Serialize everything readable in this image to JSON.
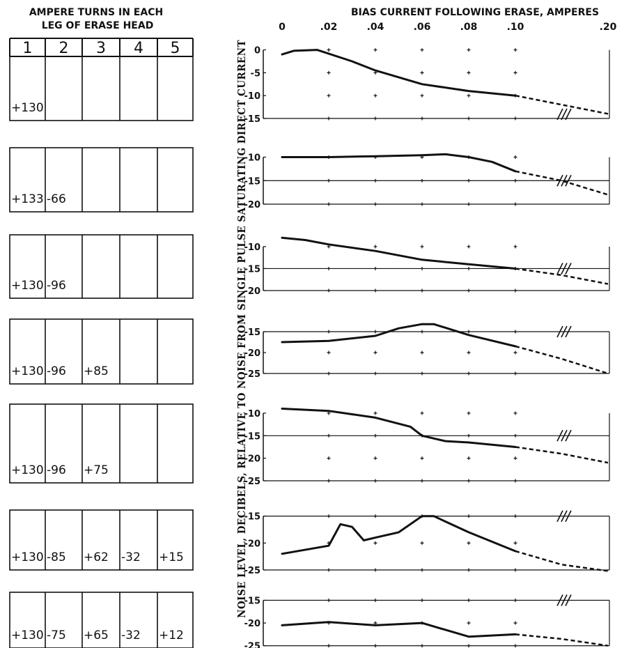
{
  "table": {
    "title_line1": "AMPERE TURNS IN EACH",
    "title_line2": "LEG OF ERASE HEAD",
    "columns": [
      "1",
      "2",
      "3",
      "4",
      "5"
    ],
    "rows": [
      [
        "+130",
        "",
        "",
        "",
        ""
      ],
      [
        "+133",
        "-66",
        "",
        "",
        ""
      ],
      [
        "+130",
        "-96",
        "",
        "",
        ""
      ],
      [
        "+130",
        "-96",
        "+85",
        "",
        ""
      ],
      [
        "+130",
        "-96",
        "+75",
        "",
        ""
      ],
      [
        "+130",
        "-85",
        "+62",
        "-32",
        "+15"
      ],
      [
        "+130",
        "-75",
        "+65",
        "-32",
        "+12"
      ]
    ]
  },
  "chart_data": {
    "type": "line",
    "xlabel": "BIAS CURRENT FOLLOWING ERASE, AMPERES",
    "ylabel": "NOISE LEVEL, DECIBELS, RELATIVE TO NOISE FROM SINGLE PULSE SATURATING DIRECT CURRENT",
    "x_ticks": [
      0,
      0.02,
      0.04,
      0.06,
      0.08,
      0.1,
      0.2
    ],
    "x_tick_labels": [
      "0",
      ".02",
      ".04",
      ".06",
      ".08",
      ".10",
      ".20"
    ],
    "x_axis_break": "between .10 and .20",
    "line_styles": {
      "measured": "solid",
      "extrapolated": "dashed"
    },
    "panels": [
      {
        "yticks": [
          0,
          -5,
          -10,
          -15
        ],
        "ylim": [
          -15,
          1
        ],
        "solid": [
          [
            0,
            -1
          ],
          [
            0.005,
            -0.2
          ],
          [
            0.015,
            0
          ],
          [
            0.03,
            -2.5
          ],
          [
            0.04,
            -4.5
          ],
          [
            0.06,
            -7.5
          ],
          [
            0.08,
            -9
          ],
          [
            0.1,
            -10
          ]
        ],
        "dashed": [
          [
            0.1,
            -10
          ],
          [
            0.15,
            -12
          ],
          [
            0.2,
            -14
          ]
        ]
      },
      {
        "yticks": [
          -10,
          -15,
          -20
        ],
        "ylim": [
          -20,
          -8
        ],
        "solid": [
          [
            0,
            -10
          ],
          [
            0.02,
            -10
          ],
          [
            0.04,
            -9.8
          ],
          [
            0.06,
            -9.6
          ],
          [
            0.07,
            -9.4
          ],
          [
            0.08,
            -10
          ],
          [
            0.09,
            -11
          ],
          [
            0.1,
            -13
          ]
        ],
        "dashed": [
          [
            0.1,
            -13
          ],
          [
            0.15,
            -15
          ],
          [
            0.2,
            -18
          ]
        ]
      },
      {
        "yticks": [
          -10,
          -15,
          -20
        ],
        "ylim": [
          -20,
          -7
        ],
        "solid": [
          [
            0,
            -8
          ],
          [
            0.01,
            -8.5
          ],
          [
            0.02,
            -9.5
          ],
          [
            0.04,
            -11
          ],
          [
            0.06,
            -13
          ],
          [
            0.08,
            -14
          ],
          [
            0.1,
            -15
          ]
        ],
        "dashed": [
          [
            0.1,
            -15
          ],
          [
            0.15,
            -16.5
          ],
          [
            0.2,
            -18.5
          ]
        ]
      },
      {
        "yticks": [
          -15,
          -20,
          -25
        ],
        "ylim": [
          -25,
          -12
        ],
        "solid": [
          [
            0,
            -17.5
          ],
          [
            0.02,
            -17.2
          ],
          [
            0.04,
            -16
          ],
          [
            0.05,
            -14.2
          ],
          [
            0.06,
            -13.2
          ],
          [
            0.065,
            -13.2
          ],
          [
            0.08,
            -15.8
          ],
          [
            0.1,
            -18.5
          ]
        ],
        "dashed": [
          [
            0.1,
            -18.5
          ],
          [
            0.15,
            -21.5
          ],
          [
            0.2,
            -25
          ]
        ]
      },
      {
        "yticks": [
          -10,
          -15,
          -20,
          -25
        ],
        "ylim": [
          -25,
          -8
        ],
        "solid": [
          [
            0,
            -9
          ],
          [
            0.02,
            -9.5
          ],
          [
            0.04,
            -11
          ],
          [
            0.055,
            -13
          ],
          [
            0.06,
            -15
          ],
          [
            0.07,
            -16.2
          ],
          [
            0.08,
            -16.5
          ],
          [
            0.1,
            -17.5
          ]
        ],
        "dashed": [
          [
            0.1,
            -17.5
          ],
          [
            0.15,
            -19
          ],
          [
            0.2,
            -21
          ]
        ]
      },
      {
        "yticks": [
          -15,
          -20,
          -25
        ],
        "ylim": [
          -25,
          -14
        ],
        "solid": [
          [
            0,
            -22
          ],
          [
            0.02,
            -20.5
          ],
          [
            0.025,
            -16.5
          ],
          [
            0.03,
            -17
          ],
          [
            0.035,
            -19.5
          ],
          [
            0.04,
            -19
          ],
          [
            0.05,
            -18
          ],
          [
            0.06,
            -15
          ],
          [
            0.065,
            -15
          ],
          [
            0.07,
            -16
          ],
          [
            0.08,
            -18
          ],
          [
            0.1,
            -21.5
          ]
        ],
        "dashed": [
          [
            0.1,
            -21.5
          ],
          [
            0.15,
            -24
          ],
          [
            0.2,
            -25.2
          ]
        ]
      },
      {
        "yticks": [
          -15,
          -20,
          -25
        ],
        "ylim": [
          -25.5,
          -14
        ],
        "solid": [
          [
            0,
            -20.5
          ],
          [
            0.02,
            -19.8
          ],
          [
            0.04,
            -20.5
          ],
          [
            0.06,
            -20
          ],
          [
            0.08,
            -23
          ],
          [
            0.1,
            -22.5
          ]
        ],
        "dashed": [
          [
            0.1,
            -22.5
          ],
          [
            0.15,
            -23.5
          ],
          [
            0.2,
            -25
          ]
        ]
      }
    ]
  }
}
